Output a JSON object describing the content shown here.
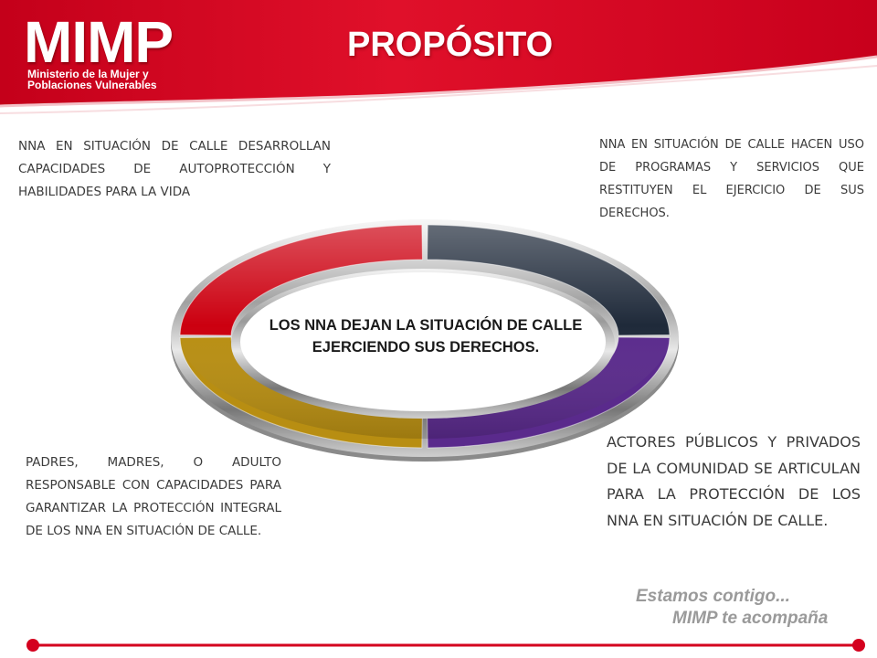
{
  "logo": {
    "name": "MIMP",
    "line1": "Ministerio de la Mujer y",
    "line2": "Poblaciones Vulnerables"
  },
  "title": "PROPÓSITO",
  "center_text": "LOS NNA DEJAN LA SITUACIÓN DE CALLE EJERCIENDO SUS DERECHOS.",
  "quadrants": {
    "top_left": "NNA EN SITUACIÓN DE CALLE DESARROLLAN CAPACIDADES DE AUTOPROTECCIÓN Y HABILIDADES PARA LA VIDA",
    "top_right": "NNA EN SITUACIÓN DE CALLE HACEN USO DE PROGRAMAS Y SERVICIOS QUE RESTITUYEN EL EJERCICIO DE SUS DERECHOS.",
    "bottom_left": "PADRES, MADRES, O ADULTO RESPONSABLE CON CAPACIDADES PARA GARANTIZAR LA PROTECCIÓN INTEGRAL DE LOS NNA EN SITUACIÓN DE CALLE.",
    "bottom_right": "ACTORES PÚBLICOS Y PRIVADOS DE LA COMUNIDAD SE ARTICULAN PARA LA PROTECCIÓN DE LOS NNA EN SITUACIÓN DE CALLE."
  },
  "slogan": {
    "line1": "Estamos contigo...",
    "line2": "MIMP te acompaña"
  },
  "colors": {
    "brand_red": "#d4001e",
    "segment_top_left": "#cc0010",
    "segment_top_right": "#1f2a3a",
    "segment_bottom_right": "#5a2a8c",
    "segment_bottom_left": "#b88e12",
    "text_gray": "#3b3b3b",
    "slogan_gray": "#9a9a9a"
  }
}
